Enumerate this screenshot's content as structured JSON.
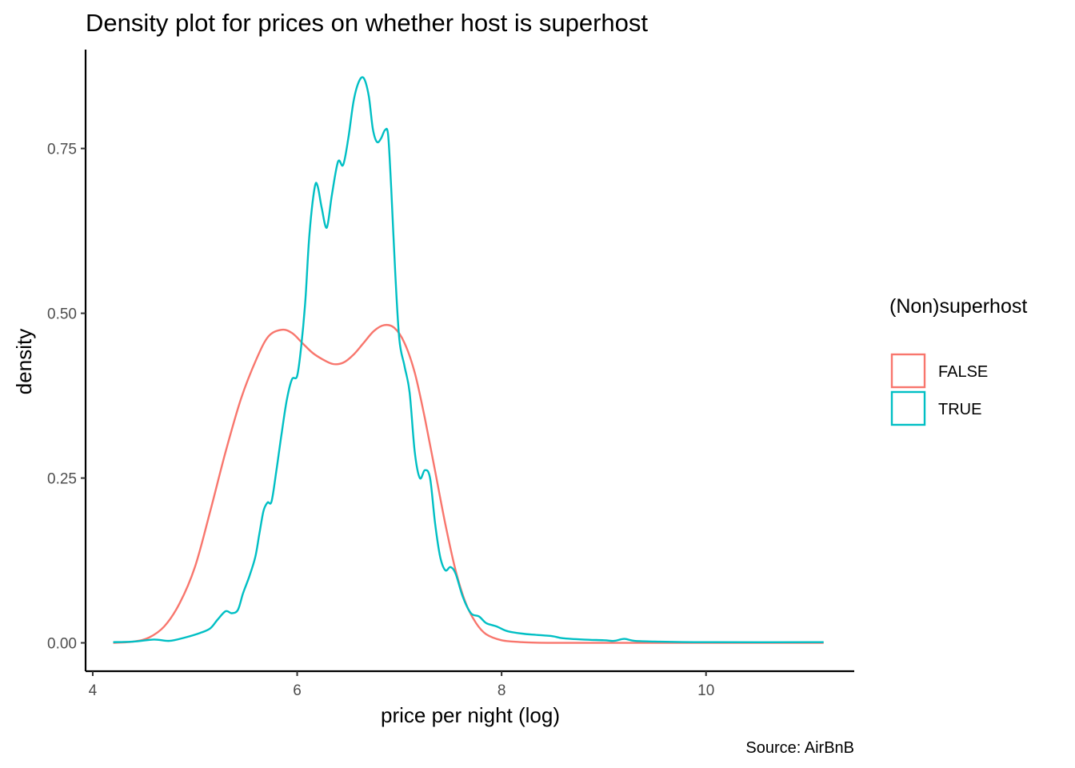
{
  "chart_data": {
    "type": "line",
    "title": "Density plot for prices on whether host is superhost",
    "xlabel": "price per night (log)",
    "ylabel": "density",
    "caption": "Source: AirBnB",
    "xlim": [
      3.93,
      11.45
    ],
    "ylim": [
      -0.043,
      0.9
    ],
    "xticks": [
      4,
      6,
      8,
      10
    ],
    "xtick_labels": [
      "4",
      "6",
      "8",
      "10"
    ],
    "yticks": [
      0.0,
      0.25,
      0.5,
      0.75
    ],
    "ytick_labels": [
      "0.00",
      "0.25",
      "0.50",
      "0.75"
    ],
    "grid": false,
    "legend": {
      "title": "(Non)superhost",
      "position": "right"
    },
    "series": [
      {
        "name": "FALSE",
        "color": "#F8766D",
        "points": [
          [
            4.2,
            0.0
          ],
          [
            4.4,
            0.002
          ],
          [
            4.55,
            0.008
          ],
          [
            4.7,
            0.025
          ],
          [
            4.85,
            0.06
          ],
          [
            5.0,
            0.115
          ],
          [
            5.15,
            0.2
          ],
          [
            5.3,
            0.29
          ],
          [
            5.45,
            0.37
          ],
          [
            5.6,
            0.43
          ],
          [
            5.72,
            0.465
          ],
          [
            5.85,
            0.475
          ],
          [
            5.95,
            0.47
          ],
          [
            6.05,
            0.455
          ],
          [
            6.15,
            0.44
          ],
          [
            6.25,
            0.43
          ],
          [
            6.35,
            0.423
          ],
          [
            6.45,
            0.425
          ],
          [
            6.55,
            0.437
          ],
          [
            6.65,
            0.455
          ],
          [
            6.75,
            0.473
          ],
          [
            6.85,
            0.482
          ],
          [
            6.95,
            0.478
          ],
          [
            7.05,
            0.455
          ],
          [
            7.15,
            0.41
          ],
          [
            7.25,
            0.34
          ],
          [
            7.35,
            0.26
          ],
          [
            7.45,
            0.18
          ],
          [
            7.55,
            0.11
          ],
          [
            7.65,
            0.06
          ],
          [
            7.75,
            0.03
          ],
          [
            7.85,
            0.013
          ],
          [
            8.0,
            0.004
          ],
          [
            8.2,
            0.001
          ],
          [
            8.5,
            0.0
          ],
          [
            9.5,
            0.0
          ],
          [
            11.15,
            0.0
          ]
        ]
      },
      {
        "name": "TRUE",
        "color": "#00BFC4",
        "points": [
          [
            4.2,
            0.001
          ],
          [
            4.4,
            0.002
          ],
          [
            4.6,
            0.005
          ],
          [
            4.75,
            0.003
          ],
          [
            4.9,
            0.008
          ],
          [
            5.05,
            0.015
          ],
          [
            5.15,
            0.022
          ],
          [
            5.22,
            0.035
          ],
          [
            5.3,
            0.048
          ],
          [
            5.36,
            0.045
          ],
          [
            5.42,
            0.05
          ],
          [
            5.47,
            0.075
          ],
          [
            5.53,
            0.1
          ],
          [
            5.59,
            0.13
          ],
          [
            5.63,
            0.165
          ],
          [
            5.67,
            0.2
          ],
          [
            5.71,
            0.213
          ],
          [
            5.75,
            0.215
          ],
          [
            5.8,
            0.265
          ],
          [
            5.85,
            0.32
          ],
          [
            5.9,
            0.37
          ],
          [
            5.95,
            0.4
          ],
          [
            6.0,
            0.405
          ],
          [
            6.04,
            0.45
          ],
          [
            6.08,
            0.52
          ],
          [
            6.12,
            0.62
          ],
          [
            6.17,
            0.69
          ],
          [
            6.2,
            0.693
          ],
          [
            6.24,
            0.66
          ],
          [
            6.29,
            0.63
          ],
          [
            6.34,
            0.68
          ],
          [
            6.4,
            0.73
          ],
          [
            6.45,
            0.725
          ],
          [
            6.5,
            0.765
          ],
          [
            6.55,
            0.82
          ],
          [
            6.6,
            0.85
          ],
          [
            6.65,
            0.857
          ],
          [
            6.7,
            0.83
          ],
          [
            6.74,
            0.78
          ],
          [
            6.78,
            0.76
          ],
          [
            6.82,
            0.765
          ],
          [
            6.86,
            0.778
          ],
          [
            6.89,
            0.77
          ],
          [
            6.92,
            0.69
          ],
          [
            6.96,
            0.56
          ],
          [
            7.0,
            0.46
          ],
          [
            7.05,
            0.42
          ],
          [
            7.1,
            0.38
          ],
          [
            7.15,
            0.29
          ],
          [
            7.2,
            0.25
          ],
          [
            7.25,
            0.262
          ],
          [
            7.3,
            0.25
          ],
          [
            7.35,
            0.18
          ],
          [
            7.4,
            0.13
          ],
          [
            7.45,
            0.11
          ],
          [
            7.5,
            0.115
          ],
          [
            7.55,
            0.105
          ],
          [
            7.62,
            0.07
          ],
          [
            7.7,
            0.045
          ],
          [
            7.78,
            0.04
          ],
          [
            7.85,
            0.03
          ],
          [
            7.95,
            0.025
          ],
          [
            8.05,
            0.018
          ],
          [
            8.2,
            0.014
          ],
          [
            8.35,
            0.012
          ],
          [
            8.5,
            0.01
          ],
          [
            8.6,
            0.007
          ],
          [
            8.8,
            0.005
          ],
          [
            9.0,
            0.004
          ],
          [
            9.1,
            0.003
          ],
          [
            9.2,
            0.006
          ],
          [
            9.3,
            0.003
          ],
          [
            9.5,
            0.002
          ],
          [
            10.0,
            0.001
          ],
          [
            11.15,
            0.001
          ]
        ]
      }
    ]
  }
}
